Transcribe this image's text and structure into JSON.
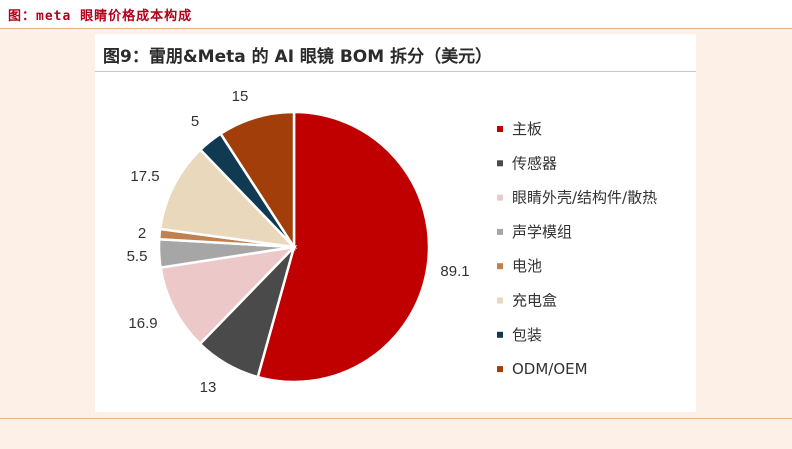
{
  "caption": "图：meta 眼睛价格成本构成",
  "chart_data": {
    "type": "pie",
    "title": "图9：雷朋&Meta 的 AI 眼镜 BOM 拆分（美元）",
    "legend_position": "right",
    "slices": [
      {
        "name": "主板",
        "value": 89.1,
        "label": "89.1",
        "color": "#c00000"
      },
      {
        "name": "传感器",
        "value": 13,
        "label": "13",
        "color": "#4a4a4a"
      },
      {
        "name": "眼睛外壳/结构件/散热",
        "value": 16.9,
        "label": "16.9",
        "color": "#ecc8c8"
      },
      {
        "name": "声学模组",
        "value": 5.5,
        "label": "5.5",
        "color": "#a6a6a6"
      },
      {
        "name": "电池",
        "value": 2,
        "label": "2",
        "color": "#c0804f"
      },
      {
        "name": "充电盒",
        "value": 17.5,
        "label": "17.5",
        "color": "#ead8bd"
      },
      {
        "name": "包装",
        "value": 5,
        "label": "5",
        "color": "#0f3a52"
      },
      {
        "name": "ODM/OEM",
        "value": 15,
        "label": "15",
        "color": "#a13e0a"
      }
    ]
  }
}
